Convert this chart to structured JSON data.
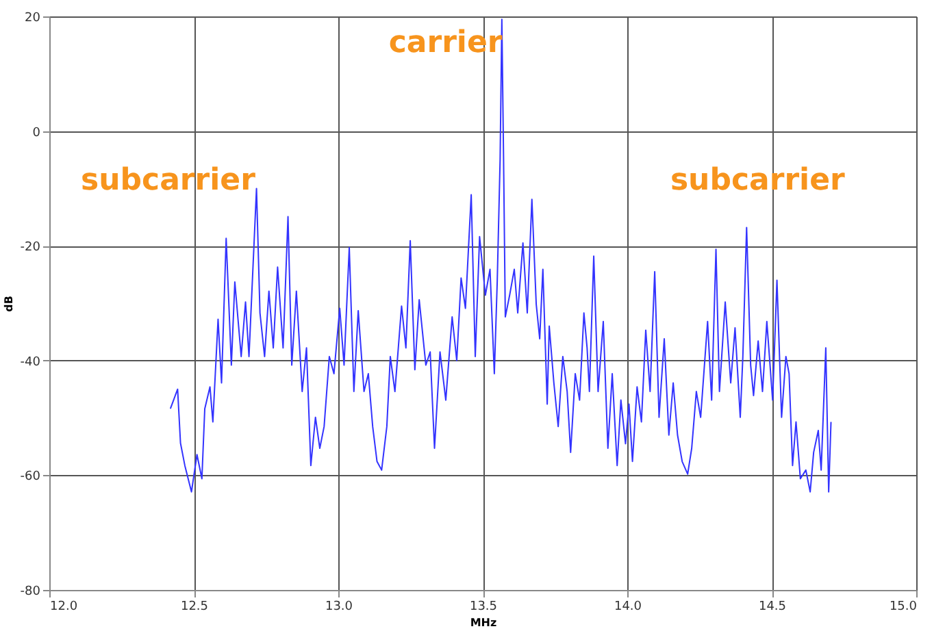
{
  "chart_data": {
    "type": "line",
    "xlabel": "MHz",
    "ylabel": "dB",
    "xlim": [
      12.0,
      15.0
    ],
    "ylim": [
      -80,
      20
    ],
    "xticks": [
      {
        "value": 12.0,
        "label": "12.0"
      },
      {
        "value": 12.5,
        "label": "12.5"
      },
      {
        "value": 13.0,
        "label": "13.0"
      },
      {
        "value": 13.5,
        "label": "13.5"
      },
      {
        "value": 14.0,
        "label": "14.0"
      },
      {
        "value": 14.5,
        "label": "14.5"
      },
      {
        "value": 15.0,
        "label": "15.0"
      }
    ],
    "yticks": [
      -80,
      -60,
      -40,
      -20,
      0,
      20
    ],
    "grid": true,
    "marker": "none",
    "line_style": "solid",
    "annotations": [
      "carrier",
      "subcarrier",
      "subcarrier"
    ],
    "series": [
      {
        "color": "#3333ff",
        "x": [
          12.419,
          12.444,
          12.454,
          12.469,
          12.492,
          12.511,
          12.528,
          12.538,
          12.556,
          12.566,
          12.584,
          12.596,
          12.612,
          12.63,
          12.642,
          12.664,
          12.679,
          12.691,
          12.717,
          12.729,
          12.745,
          12.76,
          12.775,
          12.79,
          12.809,
          12.826,
          12.839,
          12.855,
          12.875,
          12.89,
          12.905,
          12.921,
          12.936,
          12.951,
          12.969,
          12.985,
          13.005,
          13.02,
          13.038,
          13.054,
          13.069,
          13.089,
          13.104,
          13.119,
          13.134,
          13.15,
          13.168,
          13.18,
          13.196,
          13.219,
          13.234,
          13.249,
          13.265,
          13.28,
          13.303,
          13.318,
          13.333,
          13.352,
          13.372,
          13.394,
          13.41,
          13.425,
          13.44,
          13.46,
          13.474,
          13.489,
          13.509,
          13.525,
          13.54,
          13.55,
          13.56,
          13.566,
          13.572,
          13.578,
          13.593,
          13.609,
          13.621,
          13.639,
          13.654,
          13.67,
          13.685,
          13.697,
          13.708,
          13.723,
          13.73,
          13.746,
          13.761,
          13.777,
          13.792,
          13.804,
          13.82,
          13.835,
          13.85,
          13.861,
          13.869,
          13.884,
          13.899,
          13.917,
          13.933,
          13.948,
          13.965,
          13.978,
          13.994,
          14.006,
          14.018,
          14.034,
          14.049,
          14.064,
          14.079,
          14.095,
          14.11,
          14.128,
          14.144,
          14.159,
          14.174,
          14.19,
          14.209,
          14.223,
          14.239,
          14.254,
          14.278,
          14.292,
          14.307,
          14.319,
          14.339,
          14.358,
          14.373,
          14.391,
          14.4,
          14.413,
          14.427,
          14.437,
          14.453,
          14.468,
          14.483,
          14.503,
          14.518,
          14.534,
          14.549,
          14.56,
          14.572,
          14.584,
          14.599,
          14.618,
          14.633,
          14.645,
          14.661,
          14.671,
          14.687,
          14.697,
          14.705
        ],
        "values": [
          -48.4,
          -45.0,
          -54.4,
          -58.3,
          -62.9,
          -56.4,
          -60.6,
          -48.4,
          -44.6,
          -50.7,
          -32.8,
          -43.9,
          -18.7,
          -40.8,
          -26.3,
          -39.3,
          -29.8,
          -39.3,
          -10.0,
          -31.7,
          -39.3,
          -27.9,
          -37.8,
          -23.7,
          -37.8,
          -14.9,
          -40.8,
          -27.9,
          -45.4,
          -37.8,
          -58.3,
          -49.9,
          -55.3,
          -51.5,
          -39.3,
          -42.3,
          -30.9,
          -40.8,
          -20.3,
          -45.4,
          -31.3,
          -45.4,
          -42.3,
          -51.5,
          -57.6,
          -59.1,
          -51.5,
          -39.3,
          -45.4,
          -30.5,
          -37.8,
          -19.1,
          -41.6,
          -29.4,
          -40.8,
          -38.5,
          -55.3,
          -38.5,
          -46.9,
          -32.4,
          -40.0,
          -25.6,
          -30.9,
          -11.1,
          -39.3,
          -18.4,
          -28.6,
          -24.1,
          -42.3,
          -26.3,
          -5.0,
          19.5,
          -5.0,
          -32.4,
          -28.6,
          -24.1,
          -31.7,
          -19.5,
          -31.7,
          -11.9,
          -30.2,
          -36.2,
          -24.1,
          -47.6,
          -34.0,
          -43.9,
          -51.5,
          -39.3,
          -45.4,
          -56.0,
          -42.3,
          -46.9,
          -31.7,
          -37.8,
          -45.4,
          -21.8,
          -45.4,
          -33.2,
          -55.3,
          -42.3,
          -58.3,
          -46.9,
          -54.5,
          -47.6,
          -57.6,
          -44.6,
          -50.7,
          -34.7,
          -45.4,
          -24.5,
          -49.9,
          -36.2,
          -53.0,
          -43.9,
          -53.0,
          -57.6,
          -59.8,
          -55.3,
          -45.4,
          -49.9,
          -33.2,
          -46.9,
          -20.6,
          -45.4,
          -29.8,
          -43.9,
          -34.3,
          -49.9,
          -39.3,
          -16.8,
          -40.8,
          -46.1,
          -36.6,
          -45.4,
          -33.2,
          -46.9,
          -26.0,
          -49.9,
          -39.3,
          -42.3,
          -58.3,
          -50.7,
          -60.6,
          -59.1,
          -62.9,
          -56.0,
          -52.2,
          -59.1,
          -37.8,
          -62.9,
          -50.7
        ]
      }
    ]
  }
}
